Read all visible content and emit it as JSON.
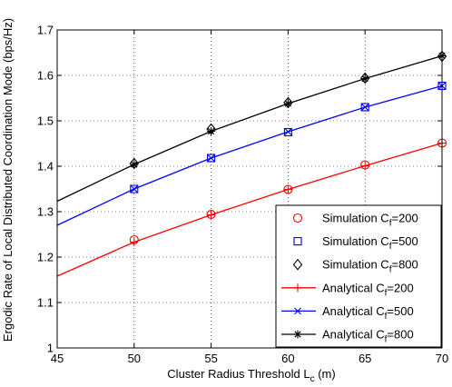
{
  "chart_data": {
    "type": "line",
    "xlabel": {
      "main": "Cluster Radius Threshold L",
      "sub": "c",
      "suffix": " (m)"
    },
    "ylabel": "Ergodic Rate of Local Distributed Coordination Mode (bps/Hz)",
    "xlim": [
      45,
      70
    ],
    "ylim": [
      1,
      1.7
    ],
    "xticks": [
      45,
      50,
      55,
      60,
      65,
      70
    ],
    "yticks": [
      1,
      1.1,
      1.2,
      1.3,
      1.4,
      1.5,
      1.6,
      1.7
    ],
    "xtick_labels": [
      "45",
      "50",
      "55",
      "60",
      "65",
      "70"
    ],
    "ytick_labels": [
      "1",
      "1.1",
      "1.2",
      "1.3",
      "1.4",
      "1.5",
      "1.6",
      "1.7"
    ],
    "grid": true,
    "legend_position": "bottom-right",
    "series": [
      {
        "name": "Simulation C",
        "sub": "f",
        "suffix": "=200",
        "kind": "markers",
        "marker": "circle",
        "color": "#ff0000",
        "x": [
          50,
          55,
          60,
          65,
          70
        ],
        "y": [
          1.238,
          1.294,
          1.349,
          1.403,
          1.451
        ]
      },
      {
        "name": "Simulation C",
        "sub": "f",
        "suffix": "=500",
        "kind": "markers",
        "marker": "square",
        "color": "#0000ff",
        "x": [
          50,
          55,
          60,
          65,
          70
        ],
        "y": [
          1.35,
          1.418,
          1.475,
          1.53,
          1.577
        ]
      },
      {
        "name": "Simulation C",
        "sub": "f",
        "suffix": "=800",
        "kind": "markers",
        "marker": "diamond",
        "color": "#000000",
        "x": [
          50,
          55,
          60,
          65,
          70
        ],
        "y": [
          1.406,
          1.482,
          1.54,
          1.594,
          1.642
        ]
      },
      {
        "name": "Analytical C",
        "sub": "f",
        "suffix": "=200",
        "kind": "line",
        "marker": "plus",
        "color": "#ff0000",
        "x": [
          45,
          50,
          55,
          60,
          65,
          70
        ],
        "y": [
          1.158,
          1.233,
          1.293,
          1.349,
          1.401,
          1.451
        ],
        "marker_x": [
          50,
          55,
          60,
          65,
          70
        ],
        "marker_y": [
          1.233,
          1.293,
          1.349,
          1.401,
          1.451
        ]
      },
      {
        "name": "Analytical C",
        "sub": "f",
        "suffix": "=500",
        "kind": "line",
        "marker": "x",
        "color": "#0000ff",
        "x": [
          45,
          50,
          55,
          60,
          65,
          70
        ],
        "y": [
          1.27,
          1.35,
          1.418,
          1.476,
          1.53,
          1.577
        ],
        "marker_x": [
          50,
          55,
          60,
          65,
          70
        ],
        "marker_y": [
          1.35,
          1.418,
          1.476,
          1.53,
          1.577
        ]
      },
      {
        "name": "Analytical C",
        "sub": "f",
        "suffix": "=800",
        "kind": "line",
        "marker": "star",
        "color": "#000000",
        "x": [
          45,
          50,
          55,
          60,
          65,
          70
        ],
        "y": [
          1.323,
          1.404,
          1.477,
          1.538,
          1.593,
          1.643
        ],
        "marker_x": [
          50,
          55,
          60,
          65,
          70
        ],
        "marker_y": [
          1.404,
          1.477,
          1.538,
          1.593,
          1.643
        ]
      }
    ]
  }
}
